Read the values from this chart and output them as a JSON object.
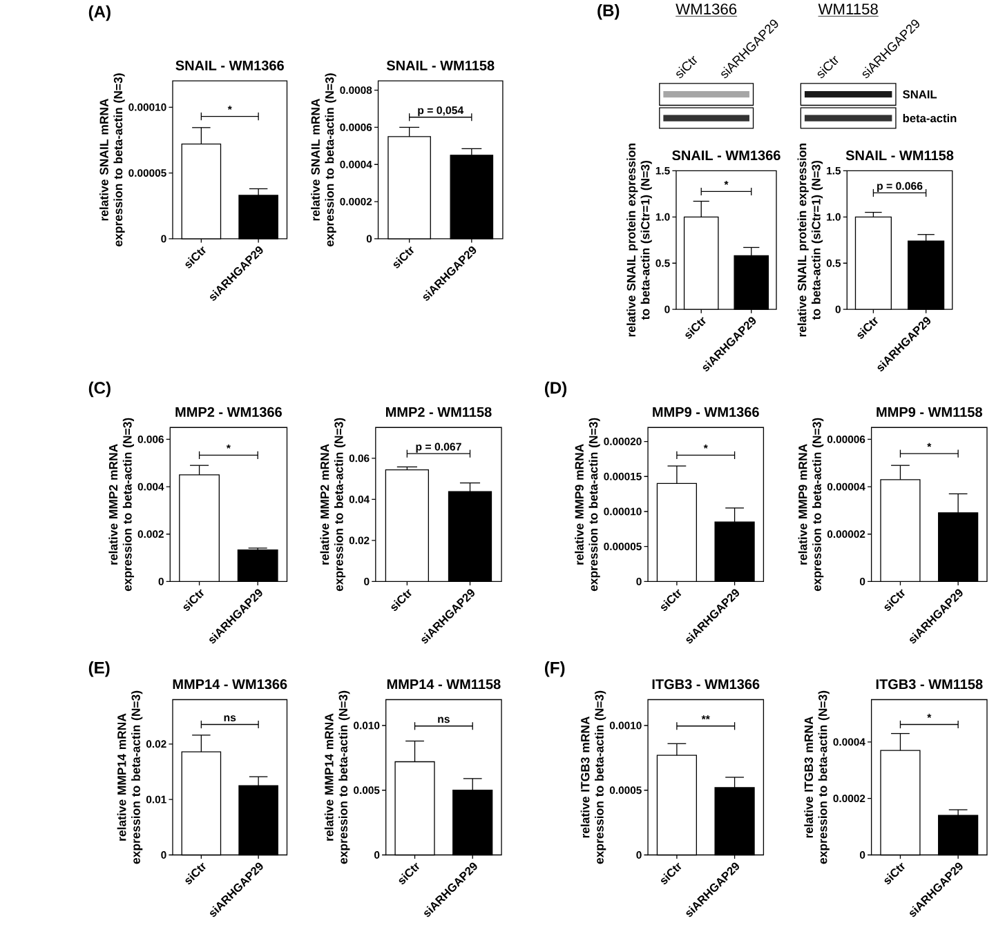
{
  "chart_data": [
    {
      "type": "bar",
      "title": "SNAIL - WM1366",
      "ylabel": "relative SNAIL mRNA expression to beta-actin (N=3)",
      "categories": [
        "siCtr",
        "siARHGAP29"
      ],
      "values": [
        7.2e-05,
        3.3e-05
      ],
      "colors": [
        "#ffffff",
        "#000000"
      ],
      "errors": [
        [
          7.2e-05,
          8.45e-05
        ],
        [
          3.3e-05,
          3.8e-05
        ]
      ],
      "ylim": [
        0,
        0.00012
      ],
      "yticks": [
        0,
        {
          "value": 5e-05,
          "label": "0.00005"
        },
        {
          "value": 0.0001,
          "label": "0.00010"
        }
      ],
      "annotations": [
        "(A)",
        "*"
      ]
    },
    {
      "type": "bar",
      "title": "SNAIL - WM1158",
      "ylabel": "relative SNAIL mRNA expression to beta-actin (N=3)",
      "categories": [
        "siCtr",
        "siARHGAP29"
      ],
      "values": [
        0.00055,
        0.00045
      ],
      "colors": [
        "#ffffff",
        "#000000"
      ],
      "errors": [
        [
          0.00055,
          0.0006
        ],
        [
          0.00045,
          0.000485
        ]
      ],
      "ylim": [
        0,
        0.00085
      ],
      "yticks": [
        0,
        {
          "value": 0.0002,
          "label": "0.0002"
        },
        {
          "value": 0.0004,
          "label": "0.0004"
        },
        {
          "value": 0.0006,
          "label": "0.0006"
        },
        {
          "value": 0.0008,
          "label": "0.0008"
        }
      ],
      "annotations": [
        "p = 0,054"
      ]
    },
    {
      "type": "other",
      "title": "WM1366",
      "categories": [
        "siCtr",
        "siARHGAP29"
      ],
      "annotations": [
        "(B)"
      ]
    },
    {
      "type": "other",
      "title": "WM1158",
      "categories": [
        "siCtr",
        "siARHGAP29"
      ],
      "annotations": [
        "SNAIL",
        "beta-actin"
      ]
    },
    {
      "type": "bar",
      "title": "SNAIL - WM1366",
      "ylabel": "relative SNAIL protein expression to beta-actin (siCtr=1) (N=3)",
      "categories": [
        "siCtr",
        "siARHGAP29"
      ],
      "values": [
        1.0,
        0.58
      ],
      "colors": [
        "#ffffff",
        "#000000"
      ],
      "errors": [
        [
          1.0,
          1.17
        ],
        [
          0.58,
          0.67
        ]
      ],
      "ylim": [
        0,
        1.5
      ],
      "yticks": [
        0,
        {
          "value": 0.5,
          "label": "0.5"
        },
        {
          "value": 1.0,
          "label": "1.0"
        },
        {
          "value": 1.5,
          "label": "1.5"
        }
      ],
      "annotations": [
        "*"
      ]
    },
    {
      "type": "bar",
      "title": "SNAIL - WM1158",
      "ylabel": "relative SNAIL protein expression to beta-actin (siCtr=1) (N=3)",
      "categories": [
        "siCtr",
        "siARHGAP29"
      ],
      "values": [
        1.0,
        0.74
      ],
      "colors": [
        "#ffffff",
        "#000000"
      ],
      "errors": [
        [
          1.0,
          1.05
        ],
        [
          0.74,
          0.81
        ]
      ],
      "ylim": [
        0,
        1.5
      ],
      "yticks": [
        0,
        {
          "value": 0.5,
          "label": "0.5"
        },
        {
          "value": 1.0,
          "label": "1.0"
        },
        {
          "value": 1.5,
          "label": "1.5"
        }
      ],
      "annotations": [
        "p = 0.066"
      ]
    },
    {
      "type": "bar",
      "title": "MMP2 - WM1366",
      "ylabel": "relative MMP2 mRNA expression to beta-actin (N=3)",
      "categories": [
        "siCtr",
        "siARHGAP29"
      ],
      "values": [
        0.0045,
        0.00133
      ],
      "colors": [
        "#ffffff",
        "#000000"
      ],
      "errors": [
        [
          0.0045,
          0.0049
        ],
        [
          0.00133,
          0.00141
        ]
      ],
      "ylim": [
        0,
        0.0065
      ],
      "yticks": [
        0,
        {
          "value": 0.002,
          "label": "0.002"
        },
        {
          "value": 0.004,
          "label": "0.004"
        },
        {
          "value": 0.006,
          "label": "0.006"
        }
      ],
      "annotations": [
        "(C)",
        "*"
      ]
    },
    {
      "type": "bar",
      "title": "MMP2 - WM1158",
      "ylabel": "relative MMP2 mRNA expression to beta-actin (N=3)",
      "categories": [
        "siCtr",
        "siARHGAP29"
      ],
      "values": [
        0.0544,
        0.0438
      ],
      "colors": [
        "#ffffff",
        "#000000"
      ],
      "errors": [
        [
          0.0544,
          0.0558
        ],
        [
          0.0438,
          0.048
        ]
      ],
      "ylim": [
        0,
        0.075
      ],
      "yticks": [
        0,
        {
          "value": 0.02,
          "label": "0.02"
        },
        {
          "value": 0.04,
          "label": "0.04"
        },
        {
          "value": 0.06,
          "label": "0.06"
        }
      ],
      "annotations": [
        "p = 0.067"
      ]
    },
    {
      "type": "bar",
      "title": "MMP9 - WM1366",
      "ylabel": "relative MMP9 mRNA expression to beta-actin (N=3)",
      "categories": [
        "siCtr",
        "siARHGAP29"
      ],
      "values": [
        0.00014,
        8.5e-05
      ],
      "colors": [
        "#ffffff",
        "#000000"
      ],
      "errors": [
        [
          0.00014,
          0.000165
        ],
        [
          8.5e-05,
          0.000105
        ]
      ],
      "ylim": [
        0,
        0.00022
      ],
      "yticks": [
        0,
        {
          "value": 5e-05,
          "label": "0.00005"
        },
        {
          "value": 0.0001,
          "label": "0.00010"
        },
        {
          "value": 0.00015,
          "label": "0.00015"
        },
        {
          "value": 0.0002,
          "label": "0.00020"
        }
      ],
      "annotations": [
        "(D)",
        "*"
      ]
    },
    {
      "type": "bar",
      "title": "MMP9 - WM1158",
      "ylabel": "relative MMP9 mRNA expression to beta-actin (N=3)",
      "categories": [
        "siCtr",
        "siARHGAP29"
      ],
      "values": [
        4.3e-05,
        2.9e-05
      ],
      "colors": [
        "#ffffff",
        "#000000"
      ],
      "errors": [
        [
          4.3e-05,
          4.9e-05
        ],
        [
          2.9e-05,
          3.7e-05
        ]
      ],
      "ylim": [
        0,
        6.5e-05
      ],
      "yticks": [
        0,
        {
          "value": 2e-05,
          "label": "0.00002"
        },
        {
          "value": 4e-05,
          "label": "0.00004"
        },
        {
          "value": 6e-05,
          "label": "0.00006"
        }
      ],
      "annotations": [
        "*"
      ]
    },
    {
      "type": "bar",
      "title": "MMP14 - WM1366",
      "ylabel": "relative MMP14 mRNA expression to beta-actin (N=3)",
      "categories": [
        "siCtr",
        "siARHGAP29"
      ],
      "values": [
        0.0186,
        0.0125
      ],
      "colors": [
        "#ffffff",
        "#000000"
      ],
      "errors": [
        [
          0.0186,
          0.0216
        ],
        [
          0.0125,
          0.0141
        ]
      ],
      "ylim": [
        0,
        0.028
      ],
      "yticks": [
        0,
        {
          "value": 0.01,
          "label": "0.01"
        },
        {
          "value": 0.02,
          "label": "0.02"
        }
      ],
      "annotations": [
        "(E)",
        "ns"
      ]
    },
    {
      "type": "bar",
      "title": "MMP14 - WM1158",
      "ylabel": "relative MMP14 mRNA expression to beta-actin (N=3)",
      "categories": [
        "siCtr",
        "siARHGAP29"
      ],
      "values": [
        0.0072,
        0.005
      ],
      "colors": [
        "#ffffff",
        "#000000"
      ],
      "errors": [
        [
          0.0072,
          0.0088
        ],
        [
          0.005,
          0.0059
        ]
      ],
      "ylim": [
        0,
        0.012
      ],
      "yticks": [
        0,
        {
          "value": 0.005,
          "label": "0.005"
        },
        {
          "value": 0.01,
          "label": "0.010"
        }
      ],
      "annotations": [
        "ns"
      ]
    },
    {
      "type": "bar",
      "title": "ITGB3 - WM1366",
      "ylabel": "relative ITGB3 mRNA expression to beta-actin (N=3)",
      "categories": [
        "siCtr",
        "siARHGAP29"
      ],
      "values": [
        0.00077,
        0.00052
      ],
      "colors": [
        "#ffffff",
        "#000000"
      ],
      "errors": [
        [
          0.00077,
          0.00086
        ],
        [
          0.00052,
          0.0006
        ]
      ],
      "ylim": [
        0,
        0.0012
      ],
      "yticks": [
        0,
        {
          "value": 0.0005,
          "label": "0.0005"
        },
        {
          "value": 0.001,
          "label": "0.0010"
        }
      ],
      "annotations": [
        "(F)",
        "**"
      ]
    },
    {
      "type": "bar",
      "title": "ITGB3 - WM1158",
      "ylabel": "relative ITGB3 mRNA expression to beta-actin (N=3)",
      "categories": [
        "siCtr",
        "siARHGAP29"
      ],
      "values": [
        0.00037,
        0.00014
      ],
      "colors": [
        "#ffffff",
        "#000000"
      ],
      "errors": [
        [
          0.00037,
          0.00043
        ],
        [
          0.00014,
          0.00016
        ]
      ],
      "ylim": [
        0,
        0.00055
      ],
      "yticks": [
        0,
        {
          "value": 0.0002,
          "label": "0.0002"
        },
        {
          "value": 0.0004,
          "label": "0.0004"
        }
      ],
      "annotations": [
        "*"
      ]
    }
  ]
}
